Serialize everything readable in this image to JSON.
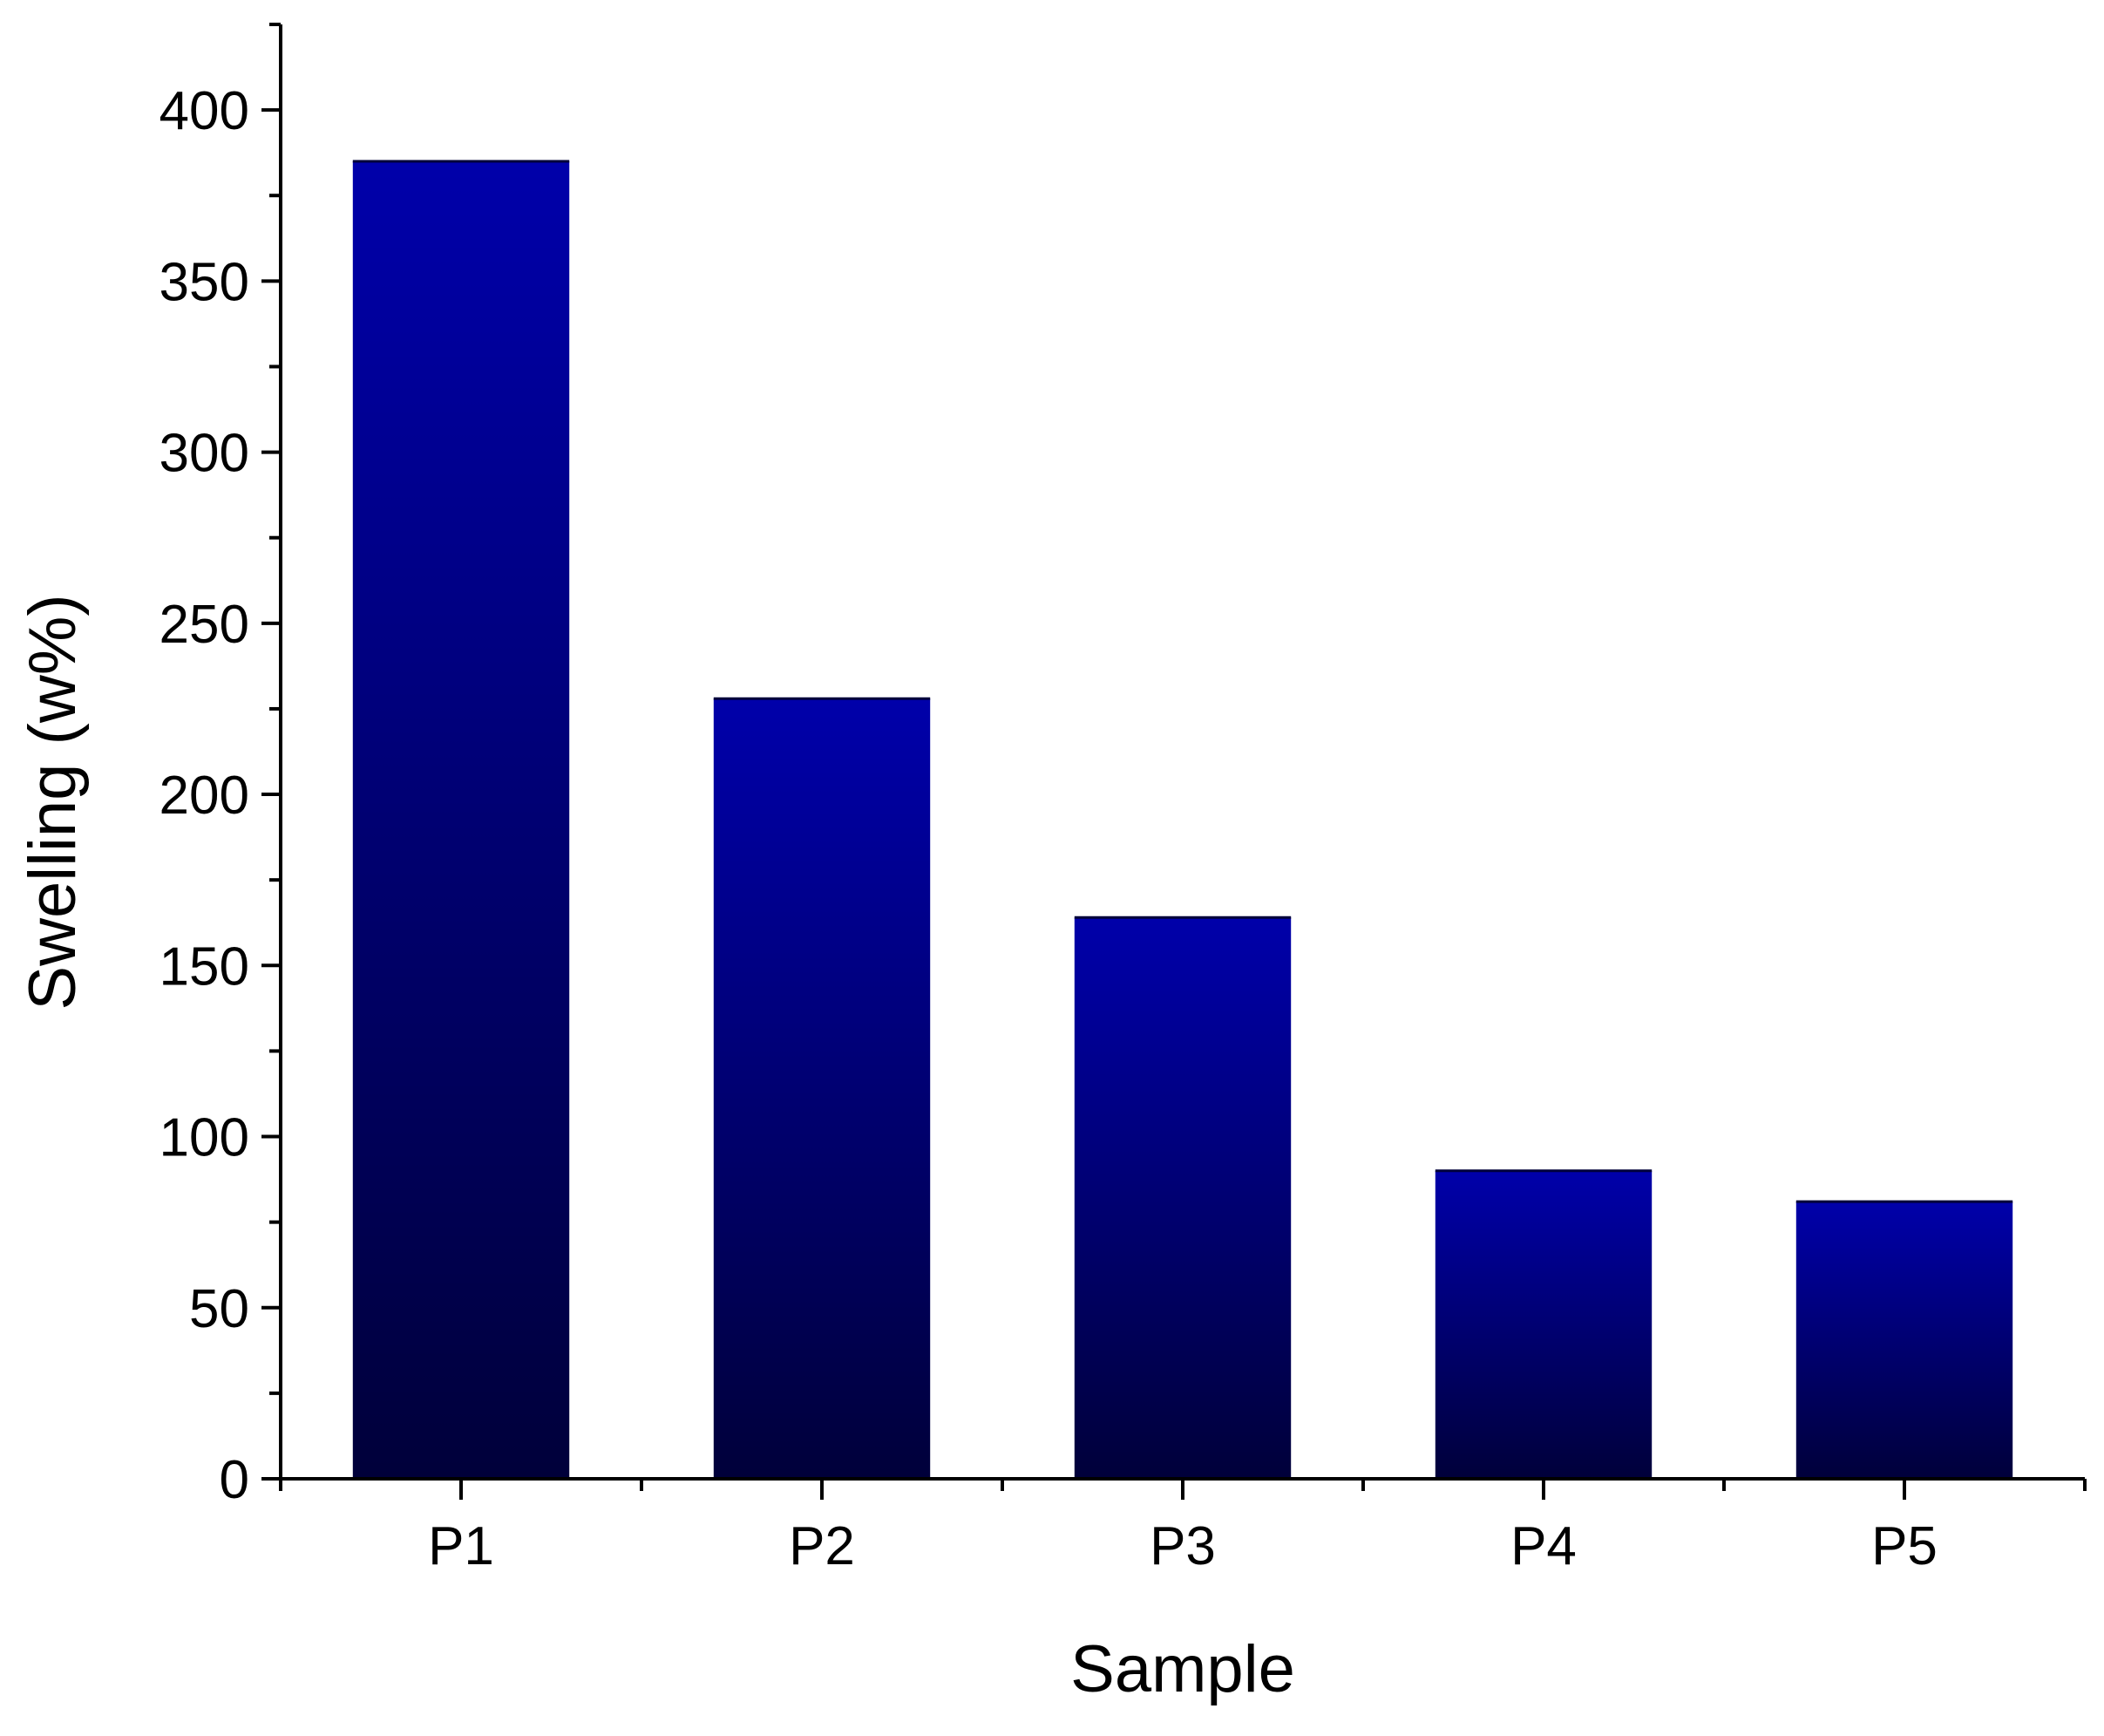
{
  "chart_data": {
    "type": "bar",
    "title": "",
    "xlabel": "Sample",
    "ylabel": "Swelling (w%)",
    "categories": [
      "P1",
      "P2",
      "P3",
      "P4",
      "P5"
    ],
    "values": [
      385,
      228,
      164,
      90,
      81
    ],
    "ylim": [
      0,
      425
    ],
    "yticks": [
      0,
      50,
      100,
      150,
      200,
      250,
      300,
      350,
      400
    ],
    "yticks_minor_step": 25,
    "grid": false,
    "legend": "none",
    "bar_gradient": {
      "top": "#0000aa",
      "bottom": "#00003a"
    },
    "axis_color": "#000000"
  }
}
